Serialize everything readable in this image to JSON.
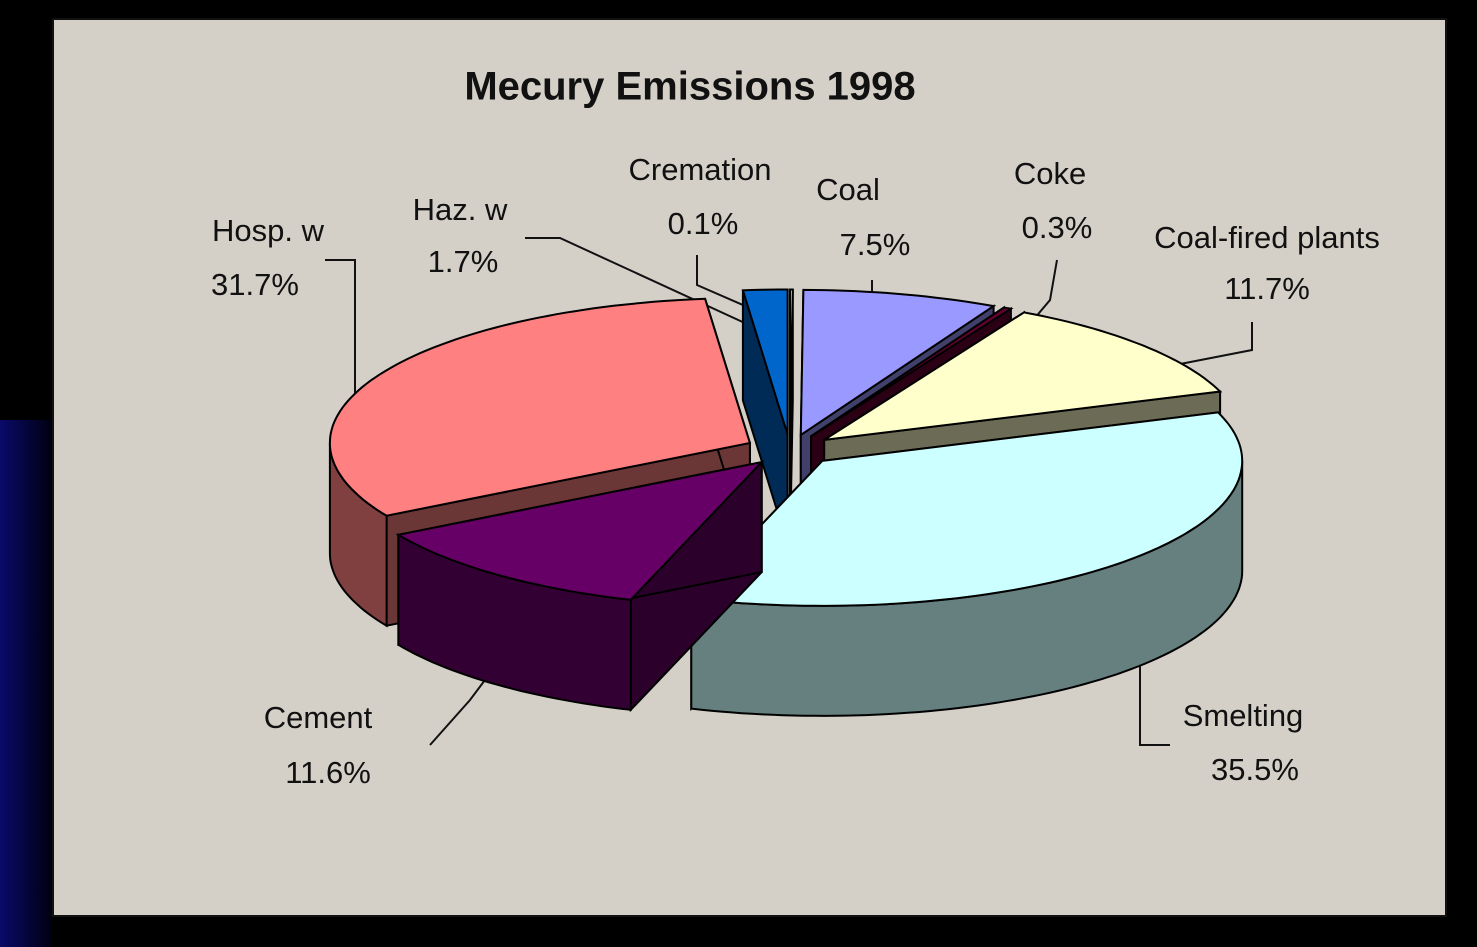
{
  "chart_data": {
    "type": "pie3d",
    "title": "Mecury Emissions 1998",
    "categories": [
      "Cremation",
      "Coal",
      "Coke",
      "Coal-fired plants",
      "Smelting",
      "Cement",
      "Hosp. w",
      "Haz. w"
    ],
    "values": [
      0.1,
      7.5,
      0.3,
      11.7,
      35.5,
      11.6,
      31.7,
      1.7
    ],
    "value_labels": [
      "0.1%",
      "7.5%",
      "0.3%",
      "11.7%",
      "35.5%",
      "11.6%",
      "31.7%",
      "1.7%"
    ],
    "colors": [
      "#ffffff",
      "#9999ff",
      "#660033",
      "#ffffcc",
      "#ccffff",
      "#660066",
      "#ff8080",
      "#0066cc"
    ]
  }
}
